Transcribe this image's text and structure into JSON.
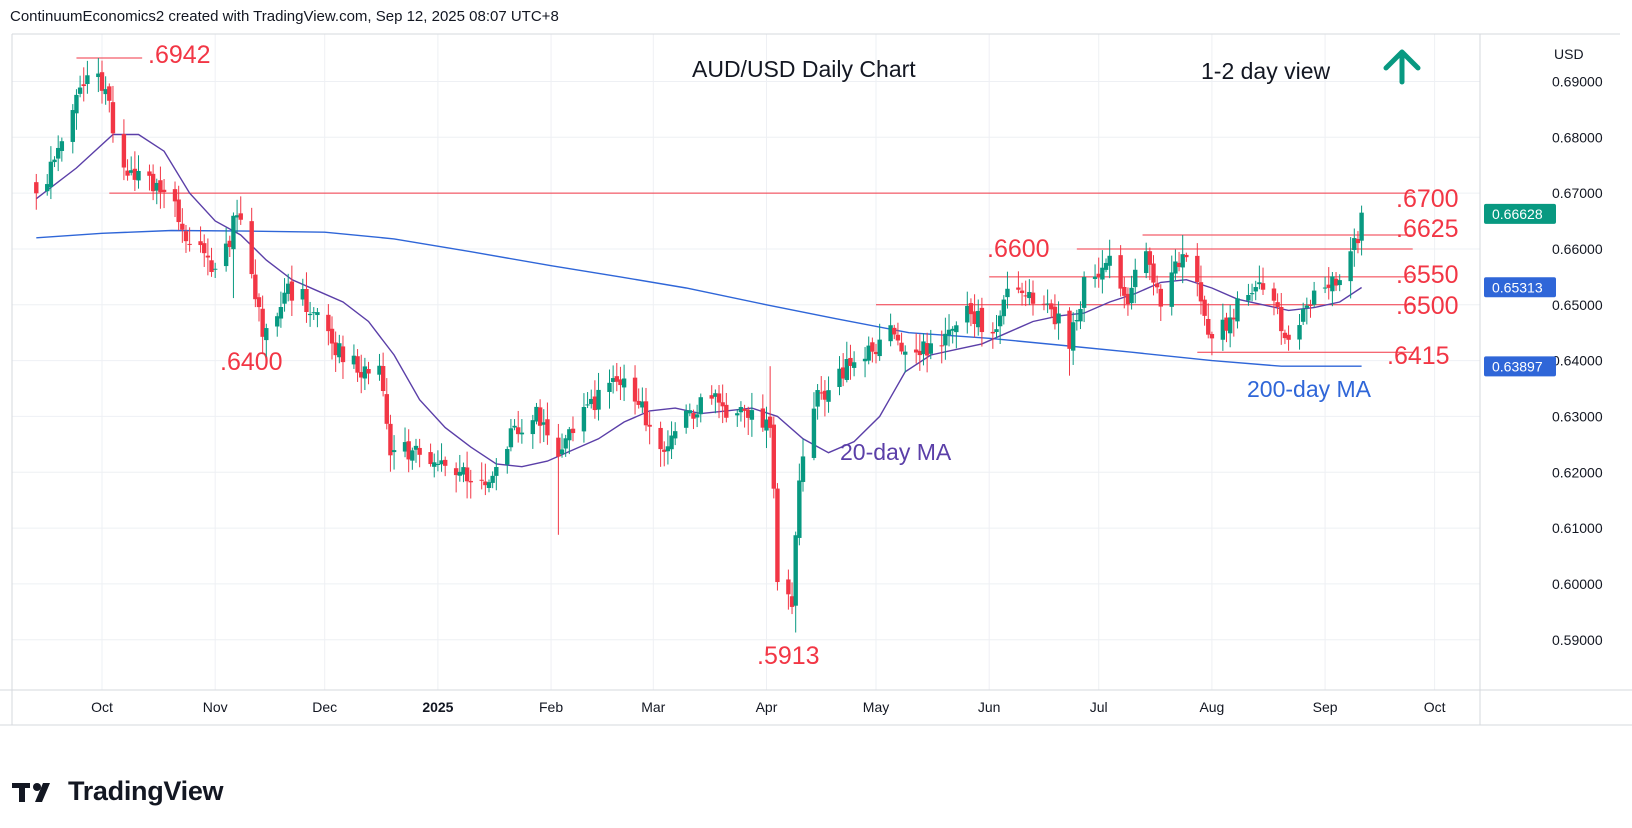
{
  "header": {
    "attribution": "ContinuumEconomics2 created with TradingView.com, Sep 12, 2025 08:07 UTC+8"
  },
  "footer": {
    "brand": "TradingView"
  },
  "colors": {
    "up": "#089981",
    "down": "#f23645",
    "ma20": "#5b3fa8",
    "ma200": "#2f66d8",
    "level": "#f23645",
    "arrow": "#089981",
    "label": "#2f66d8"
  },
  "chart_data": {
    "type": "candlestick",
    "title": "AUD/USD Daily Chart",
    "subtitle": "1-2 day view",
    "view_icon": "up-arrow-icon",
    "currency": "USD",
    "ylim": [
      0.581,
      0.6985
    ],
    "y_ticks": [
      "0.69000",
      "0.68000",
      "0.67000",
      "0.66000",
      "0.65000",
      "0.64000",
      "0.63000",
      "0.62000",
      "0.61000",
      "0.60000",
      "0.59000"
    ],
    "x_ticks": [
      "Oct",
      "Nov",
      "Dec",
      "2025",
      "Feb",
      "Mar",
      "Apr",
      "May",
      "Jun",
      "Jul",
      "Aug",
      "Sep",
      "Oct"
    ],
    "price_badges": [
      {
        "value": "0.66628",
        "color": "#089981"
      },
      {
        "value": "0.65313",
        "color": "#2f66d8"
      },
      {
        "value": "0.63897",
        "color": "#2f66d8"
      }
    ],
    "levels": [
      {
        "label": ".6942",
        "value": 0.6942
      },
      {
        "label": ".6700",
        "value": 0.67
      },
      {
        "label": ".6625",
        "value": 0.6625
      },
      {
        "label": ".6600",
        "value": 0.66
      },
      {
        "label": ".6550",
        "value": 0.655
      },
      {
        "label": ".6500",
        "value": 0.65
      },
      {
        "label": ".6415",
        "value": 0.6415
      },
      {
        "label": ".6400",
        "value": 0.64
      },
      {
        "label": ".5913",
        "value": 0.5913
      }
    ],
    "ma_labels": {
      "ma20": "20-day MA",
      "ma200": "200-day MA"
    },
    "anchors": [
      [
        "2024-09-13",
        0.67
      ],
      [
        "2024-09-17",
        0.674
      ],
      [
        "2024-09-20",
        0.6805
      ],
      [
        "2024-09-24",
        0.687
      ],
      [
        "2024-09-30",
        0.6925
      ],
      [
        "2024-10-03",
        0.685
      ],
      [
        "2024-10-08",
        0.674
      ],
      [
        "2024-10-14",
        0.672
      ],
      [
        "2024-10-18",
        0.671
      ],
      [
        "2024-10-23",
        0.664
      ],
      [
        "2024-10-28",
        0.661
      ],
      [
        "2024-10-31",
        0.656
      ],
      [
        "2024-11-04",
        0.659
      ],
      [
        "2024-11-07",
        0.667
      ],
      [
        "2024-11-11",
        0.656
      ],
      [
        "2024-11-14",
        0.645
      ],
      [
        "2024-11-20",
        0.652
      ],
      [
        "2024-11-25",
        0.651
      ],
      [
        "2024-11-29",
        0.648
      ],
      [
        "2024-12-04",
        0.642
      ],
      [
        "2024-12-11",
        0.639
      ],
      [
        "2024-12-16",
        0.637
      ],
      [
        "2024-12-19",
        0.625
      ],
      [
        "2024-12-27",
        0.623
      ],
      [
        "2025-01-03",
        0.622
      ],
      [
        "2025-01-08",
        0.62
      ],
      [
        "2025-01-13",
        0.617
      ],
      [
        "2025-01-17",
        0.619
      ],
      [
        "2025-01-22",
        0.628
      ],
      [
        "2025-01-28",
        0.63
      ],
      [
        "2025-02-03",
        0.623
      ],
      [
        "2025-02-07",
        0.628
      ],
      [
        "2025-02-14",
        0.634
      ],
      [
        "2025-02-18",
        0.636
      ],
      [
        "2025-02-21",
        0.6385
      ],
      [
        "2025-02-26",
        0.632
      ],
      [
        "2025-03-04",
        0.623
      ],
      [
        "2025-03-07",
        0.629
      ],
      [
        "2025-03-14",
        0.632
      ],
      [
        "2025-03-18",
        0.636
      ],
      [
        "2025-03-21",
        0.629
      ],
      [
        "2025-03-28",
        0.631
      ],
      [
        "2025-04-02",
        0.629
      ],
      [
        "2025-04-04",
        0.601
      ],
      [
        "2025-04-08",
        0.596
      ],
      [
        "2025-04-10",
        0.62
      ],
      [
        "2025-04-14",
        0.633
      ],
      [
        "2025-04-22",
        0.638
      ],
      [
        "2025-04-30",
        0.641
      ],
      [
        "2025-05-05",
        0.646
      ],
      [
        "2025-05-09",
        0.642
      ],
      [
        "2025-05-14",
        0.643
      ],
      [
        "2025-05-20",
        0.643
      ],
      [
        "2025-05-26",
        0.648
      ],
      [
        "2025-06-02",
        0.646
      ],
      [
        "2025-06-06",
        0.651
      ],
      [
        "2025-06-11",
        0.651
      ],
      [
        "2025-06-16",
        0.65
      ],
      [
        "2025-06-20",
        0.647
      ],
      [
        "2025-06-23",
        0.644
      ],
      [
        "2025-06-27",
        0.653
      ],
      [
        "2025-07-03",
        0.658
      ],
      [
        "2025-07-09",
        0.652
      ],
      [
        "2025-07-14",
        0.658
      ],
      [
        "2025-07-18",
        0.651
      ],
      [
        "2025-07-24",
        0.6585
      ],
      [
        "2025-07-28",
        0.652
      ],
      [
        "2025-08-01",
        0.643
      ],
      [
        "2025-08-06",
        0.647
      ],
      [
        "2025-08-11",
        0.653
      ],
      [
        "2025-08-14",
        0.6545
      ],
      [
        "2025-08-18",
        0.65
      ],
      [
        "2025-08-21",
        0.643
      ],
      [
        "2025-08-22",
        0.6425
      ],
      [
        "2025-08-26",
        0.648
      ],
      [
        "2025-08-29",
        0.654
      ],
      [
        "2025-09-02",
        0.6525
      ],
      [
        "2025-09-04",
        0.6545
      ],
      [
        "2025-09-08",
        0.659
      ],
      [
        "2025-09-10",
        0.662
      ],
      [
        "2025-09-11",
        0.6665
      ]
    ],
    "ma20_points": [
      [
        "2024-09-13",
        0.669
      ],
      [
        "2024-09-24",
        0.6745
      ],
      [
        "2024-10-04",
        0.6805
      ],
      [
        "2024-10-11",
        0.6805
      ],
      [
        "2024-10-18",
        0.6775
      ],
      [
        "2024-10-25",
        0.67
      ],
      [
        "2024-11-01",
        0.665
      ],
      [
        "2024-11-08",
        0.6625
      ],
      [
        "2024-11-15",
        0.658
      ],
      [
        "2024-11-22",
        0.6545
      ],
      [
        "2024-11-29",
        0.6525
      ],
      [
        "2024-12-06",
        0.6505
      ],
      [
        "2024-12-13",
        0.647
      ],
      [
        "2024-12-20",
        0.641
      ],
      [
        "2024-12-27",
        0.633
      ],
      [
        "2025-01-03",
        0.628
      ],
      [
        "2025-01-10",
        0.6245
      ],
      [
        "2025-01-17",
        0.6215
      ],
      [
        "2025-01-24",
        0.621
      ],
      [
        "2025-01-31",
        0.622
      ],
      [
        "2025-02-07",
        0.624
      ],
      [
        "2025-02-14",
        0.626
      ],
      [
        "2025-02-21",
        0.629
      ],
      [
        "2025-02-28",
        0.631
      ],
      [
        "2025-03-07",
        0.6315
      ],
      [
        "2025-03-14",
        0.6305
      ],
      [
        "2025-03-21",
        0.631
      ],
      [
        "2025-03-28",
        0.6315
      ],
      [
        "2025-04-04",
        0.63
      ],
      [
        "2025-04-11",
        0.626
      ],
      [
        "2025-04-18",
        0.6235
      ],
      [
        "2025-04-25",
        0.6255
      ],
      [
        "2025-05-02",
        0.63
      ],
      [
        "2025-05-09",
        0.638
      ],
      [
        "2025-05-16",
        0.641
      ],
      [
        "2025-05-23",
        0.642
      ],
      [
        "2025-05-30",
        0.643
      ],
      [
        "2025-06-06",
        0.645
      ],
      [
        "2025-06-13",
        0.647
      ],
      [
        "2025-06-20",
        0.648
      ],
      [
        "2025-06-27",
        0.6485
      ],
      [
        "2025-07-04",
        0.6505
      ],
      [
        "2025-07-11",
        0.652
      ],
      [
        "2025-07-18",
        0.654
      ],
      [
        "2025-07-25",
        0.6545
      ],
      [
        "2025-08-01",
        0.653
      ],
      [
        "2025-08-08",
        0.651
      ],
      [
        "2025-08-15",
        0.65
      ],
      [
        "2025-08-22",
        0.649
      ],
      [
        "2025-08-29",
        0.6495
      ],
      [
        "2025-09-05",
        0.6505
      ],
      [
        "2025-09-11",
        0.6531
      ]
    ],
    "ma200_points": [
      [
        "2024-09-13",
        0.662
      ],
      [
        "2024-10-01",
        0.6628
      ],
      [
        "2024-10-20",
        0.6633
      ],
      [
        "2024-11-10",
        0.6632
      ],
      [
        "2024-12-01",
        0.663
      ],
      [
        "2024-12-20",
        0.6618
      ],
      [
        "2025-01-10",
        0.6595
      ],
      [
        "2025-02-01",
        0.657
      ],
      [
        "2025-02-20",
        0.655
      ],
      [
        "2025-03-10",
        0.653
      ],
      [
        "2025-04-01",
        0.65
      ],
      [
        "2025-04-20",
        0.6475
      ],
      [
        "2025-05-10",
        0.645
      ],
      [
        "2025-06-01",
        0.644
      ],
      [
        "2025-06-20",
        0.6428
      ],
      [
        "2025-07-10",
        0.6415
      ],
      [
        "2025-08-01",
        0.64
      ],
      [
        "2025-08-20",
        0.639
      ],
      [
        "2025-09-11",
        0.639
      ]
    ]
  }
}
